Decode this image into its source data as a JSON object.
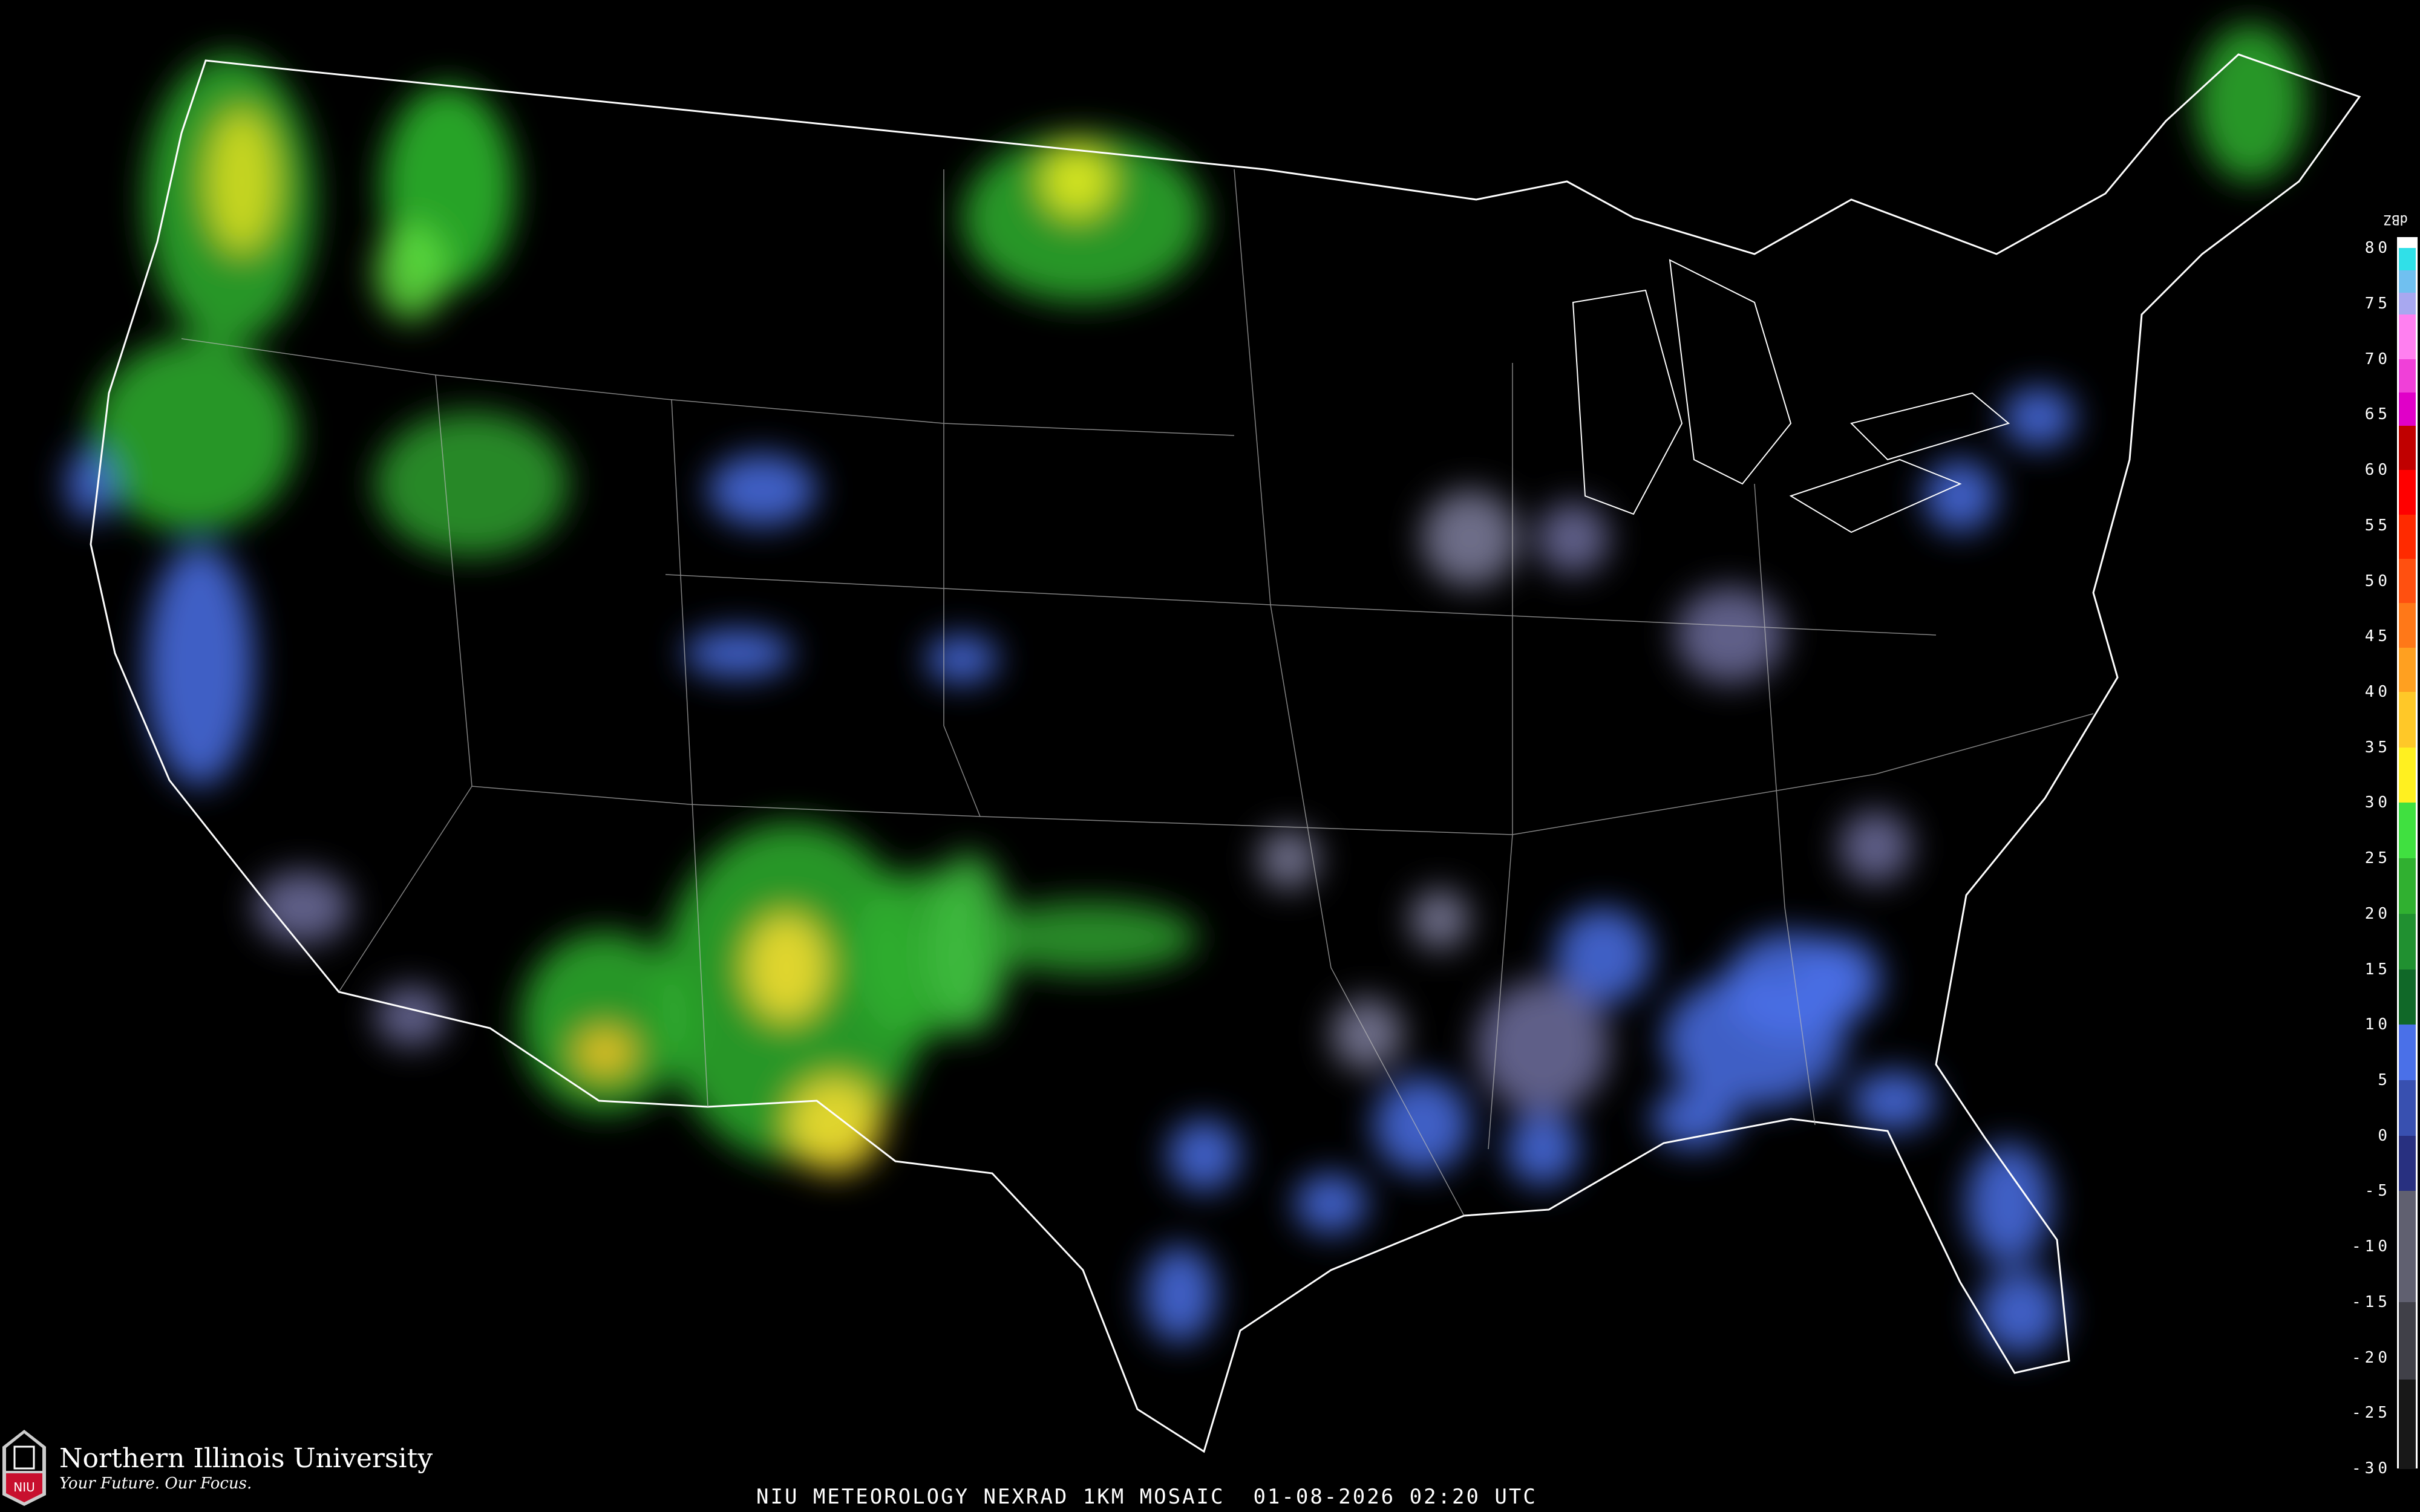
{
  "caption": "NIU METEOROLOGY NEXRAD 1KM MOSAIC  01-08-2026 02:20 UTC",
  "logo": {
    "name": "Northern Illinois University",
    "tagline": "Your Future. Our Focus.",
    "mark": "NIU",
    "accent": "#c8102e"
  },
  "legend": {
    "unit": "dBZ",
    "ticks": [
      80,
      75,
      70,
      65,
      60,
      55,
      50,
      45,
      40,
      35,
      30,
      25,
      20,
      15,
      10,
      5,
      0,
      -5,
      -10,
      -15,
      -20,
      -25,
      -30
    ],
    "range": [
      -30,
      81
    ],
    "colorscale": [
      {
        "from": 80,
        "to": 81,
        "color": "#ffffff"
      },
      {
        "from": 78,
        "to": 80,
        "color": "#30e0e8"
      },
      {
        "from": 76,
        "to": 78,
        "color": "#70c0f0"
      },
      {
        "from": 74,
        "to": 76,
        "color": "#a8a8f0"
      },
      {
        "from": 70,
        "to": 74,
        "color": "#ff80f0"
      },
      {
        "from": 67,
        "to": 70,
        "color": "#f040d8"
      },
      {
        "from": 64,
        "to": 67,
        "color": "#e000c8"
      },
      {
        "from": 60,
        "to": 64,
        "color": "#c00000"
      },
      {
        "from": 56,
        "to": 60,
        "color": "#ff0000"
      },
      {
        "from": 52,
        "to": 56,
        "color": "#ff2a00"
      },
      {
        "from": 48,
        "to": 52,
        "color": "#ff5010"
      },
      {
        "from": 44,
        "to": 48,
        "color": "#ff7818"
      },
      {
        "from": 40,
        "to": 44,
        "color": "#ffa020"
      },
      {
        "from": 35,
        "to": 40,
        "color": "#ffc828"
      },
      {
        "from": 30,
        "to": 35,
        "color": "#fff020"
      },
      {
        "from": 25,
        "to": 30,
        "color": "#40e040"
      },
      {
        "from": 20,
        "to": 25,
        "color": "#30b030"
      },
      {
        "from": 15,
        "to": 20,
        "color": "#209030"
      },
      {
        "from": 10,
        "to": 15,
        "color": "#106828"
      },
      {
        "from": 5,
        "to": 10,
        "color": "#4a70e8"
      },
      {
        "from": 0,
        "to": 5,
        "color": "#3850b0"
      },
      {
        "from": -5,
        "to": 0,
        "color": "#283080"
      },
      {
        "from": -15,
        "to": -5,
        "color": "#606070"
      },
      {
        "from": -22,
        "to": -15,
        "color": "#404048"
      },
      {
        "from": -30,
        "to": -22,
        "color": "#181818"
      }
    ]
  }
}
